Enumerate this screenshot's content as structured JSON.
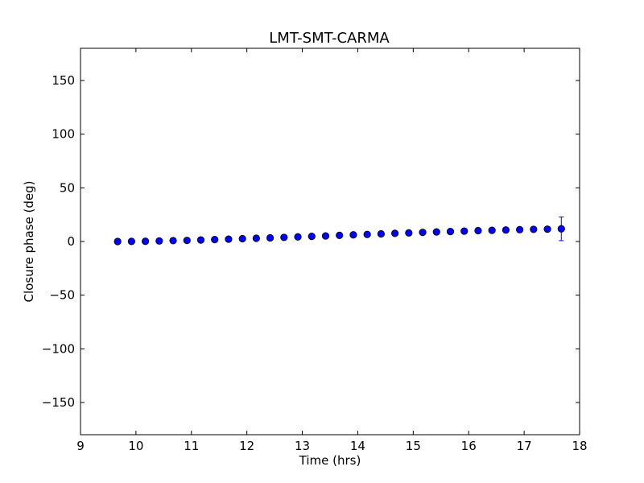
{
  "chart_data": {
    "type": "scatter",
    "title": "LMT-SMT-CARMA",
    "xlabel": "Time (hrs)",
    "ylabel": "Closure phase (deg)",
    "xlim": [
      9,
      18
    ],
    "ylim": [
      -180,
      180
    ],
    "xticks": [
      "9",
      "10",
      "11",
      "12",
      "13",
      "14",
      "15",
      "16",
      "17",
      "18"
    ],
    "yticks": [
      "150",
      "100",
      "50",
      "0",
      "−50",
      "−100",
      "−150"
    ],
    "ytick_values": [
      150,
      100,
      50,
      0,
      -50,
      -100,
      -150
    ],
    "xtick_values": [
      9,
      10,
      11,
      12,
      13,
      14,
      15,
      16,
      17,
      18
    ],
    "grid": false,
    "marker_color": "#0000ff",
    "x": [
      9.67,
      9.92,
      10.17,
      10.42,
      10.67,
      10.92,
      11.17,
      11.42,
      11.67,
      11.92,
      12.17,
      12.42,
      12.67,
      12.92,
      13.17,
      13.42,
      13.67,
      13.92,
      14.17,
      14.42,
      14.67,
      14.92,
      15.17,
      15.42,
      15.67,
      15.92,
      16.17,
      16.42,
      16.67,
      16.92,
      17.17,
      17.42,
      17.67
    ],
    "y": [
      0.0,
      0.1,
      0.2,
      0.5,
      0.8,
      1.0,
      1.4,
      1.8,
      2.2,
      2.6,
      3.0,
      3.4,
      3.8,
      4.3,
      4.8,
      5.2,
      5.7,
      6.2,
      6.6,
      7.1,
      7.6,
      8.0,
      8.5,
      8.9,
      9.3,
      9.7,
      10.1,
      10.4,
      10.7,
      11.0,
      11.3,
      11.5,
      11.8
    ],
    "yerr": [
      0.5,
      0.5,
      0.5,
      0.5,
      0.5,
      0.5,
      0.5,
      0.5,
      0.5,
      0.5,
      0.5,
      0.5,
      0.5,
      0.5,
      0.5,
      0.5,
      0.5,
      0.5,
      0.5,
      0.5,
      0.5,
      0.5,
      0.5,
      0.5,
      0.5,
      0.5,
      0.5,
      0.5,
      0.5,
      0.5,
      0.5,
      0.5,
      11.0
    ]
  }
}
